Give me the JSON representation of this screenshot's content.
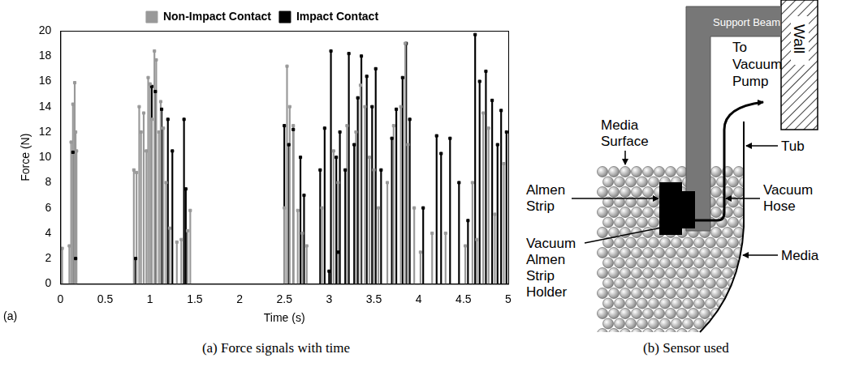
{
  "chart_data": {
    "type": "scatter",
    "marker": "square",
    "line_style": "stem",
    "x_label": "Time (s)",
    "y_label": "Force (N)",
    "annotations": [
      "(a)"
    ],
    "xlim": [
      0,
      5
    ],
    "xticks": [
      0,
      0.5,
      1,
      1.5,
      2,
      2.5,
      3,
      3.5,
      4,
      4.5,
      5
    ],
    "ylim": [
      0,
      20
    ],
    "yticks": [
      0,
      2,
      4,
      6,
      8,
      10,
      12,
      14,
      16,
      18,
      20
    ],
    "grid": false,
    "legend": "top",
    "series": [
      {
        "name": "Non-Impact Contact",
        "color": "#999999",
        "x": [
          0.02,
          0.1,
          0.12,
          0.14,
          0.16,
          0.17,
          0.18,
          0.82,
          0.85,
          0.88,
          0.9,
          0.93,
          0.96,
          0.98,
          1.0,
          1.02,
          1.05,
          1.07,
          1.1,
          1.12,
          1.15,
          1.18,
          1.22,
          1.3,
          1.35,
          1.42,
          1.45,
          2.5,
          2.53,
          2.56,
          2.6,
          2.65,
          2.7,
          2.75,
          2.92,
          3.05,
          3.1,
          3.2,
          3.3,
          3.35,
          3.4,
          3.45,
          3.5,
          3.55,
          3.65,
          3.72,
          3.8,
          3.85,
          3.88,
          3.95,
          4.02,
          4.15,
          4.3,
          4.52,
          4.6,
          4.65,
          4.72,
          4.78,
          4.85,
          4.95
        ],
        "values": [
          2.8,
          3,
          11.2,
          14.2,
          15.9,
          12,
          10.5,
          9,
          8.8,
          14,
          12,
          13.5,
          10.5,
          16.3,
          15.8,
          13,
          18.4,
          17.7,
          12,
          14.4,
          12.3,
          8,
          4.4,
          3.3,
          3.5,
          4.2,
          5.8,
          6,
          17.2,
          14,
          12.5,
          5.8,
          4,
          3,
          6,
          10.5,
          8,
          12.5,
          12,
          15.7,
          14,
          10,
          9,
          6,
          8,
          12.5,
          14,
          19,
          11,
          6,
          2.5,
          4,
          4,
          3,
          8,
          3.5,
          13.5,
          12.3,
          5.5,
          9.5
        ]
      },
      {
        "name": "Impact Contact",
        "color": "#000000",
        "x": [
          0.14,
          0.17,
          0.84,
          1.02,
          1.06,
          1.13,
          1.2,
          1.25,
          1.38,
          1.4,
          2.5,
          2.55,
          2.6,
          2.68,
          2.72,
          2.9,
          2.95,
          3.0,
          3.02,
          3.08,
          3.1,
          3.12,
          3.18,
          3.22,
          3.28,
          3.32,
          3.36,
          3.42,
          3.48,
          3.52,
          3.58,
          3.7,
          3.75,
          3.82,
          3.86,
          3.9,
          4.05,
          4.2,
          4.25,
          4.35,
          4.45,
          4.55,
          4.63,
          4.68,
          4.75,
          4.82,
          4.88,
          4.92,
          4.98
        ],
        "values": [
          10.4,
          2,
          2,
          15.6,
          15.2,
          13.8,
          13,
          10.5,
          13,
          7.5,
          12.5,
          11,
          12.2,
          10,
          7,
          9,
          12.3,
          1,
          18.4,
          10,
          2.5,
          12,
          9,
          18.2,
          11,
          14.7,
          18,
          16.4,
          14,
          17,
          9,
          11.5,
          13.8,
          16.3,
          19,
          13,
          6,
          11.7,
          10.3,
          11.5,
          8,
          5,
          19.7,
          16,
          16.8,
          14.5,
          11,
          13.7,
          12
        ]
      }
    ]
  },
  "diagram": {
    "labels": {
      "support_beam": "Support Beam",
      "wall": "Wall",
      "to_vacuum_pump": "To Vacuum Pump",
      "media_surface": "Media Surface",
      "tub": "Tub",
      "almen_strip": "Almen Strip",
      "vacuum_hose": "Vacuum Hose",
      "holder": "Vacuum Almen Strip Holder",
      "media": "Media"
    }
  },
  "captions": [
    "(a) Force signals with time",
    "(b) Sensor used"
  ]
}
